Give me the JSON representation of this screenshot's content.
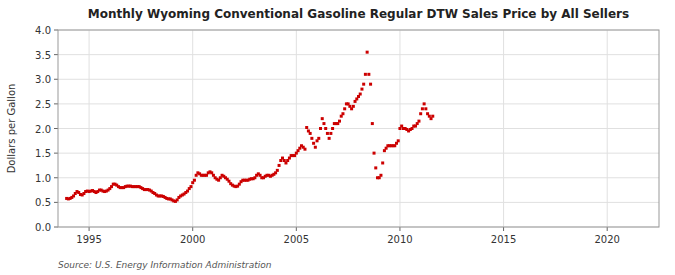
{
  "chart_data": {
    "type": "scatter",
    "title": "Monthly Wyoming Conventional Gasoline Regular DTW Sales Price by All Sellers",
    "y_label": "Dollars per Gallon",
    "source": "Source: U.S. Energy Information Administration",
    "color": "#cc0000",
    "marker": "square",
    "grid": true,
    "xlim": [
      1993.5,
      2022.5
    ],
    "ylim": [
      0.0,
      4.0
    ],
    "xticks": [
      1995,
      2000,
      2005,
      2010,
      2015,
      2020
    ],
    "yticks": [
      {
        "value": 0.0,
        "label": "0.0"
      },
      0.5,
      {
        "value": 1.0,
        "label": "1.0"
      },
      1.5,
      {
        "value": 2.0,
        "label": "2.0"
      },
      2.5,
      {
        "value": 3.0,
        "label": "3.0"
      },
      3.5,
      {
        "value": 4.0,
        "label": "4.0"
      }
    ],
    "x": [
      1993.917,
      1994.0,
      1994.083,
      1994.167,
      1994.25,
      1994.333,
      1994.417,
      1994.5,
      1994.583,
      1994.667,
      1994.75,
      1994.833,
      1994.917,
      1995.0,
      1995.083,
      1995.167,
      1995.25,
      1995.333,
      1995.417,
      1995.5,
      1995.583,
      1995.667,
      1995.75,
      1995.833,
      1995.917,
      1996.0,
      1996.083,
      1996.167,
      1996.25,
      1996.333,
      1996.417,
      1996.5,
      1996.583,
      1996.667,
      1996.75,
      1996.833,
      1996.917,
      1997.0,
      1997.083,
      1997.167,
      1997.25,
      1997.333,
      1997.417,
      1997.5,
      1997.583,
      1997.667,
      1997.75,
      1997.833,
      1997.917,
      1998.0,
      1998.083,
      1998.167,
      1998.25,
      1998.333,
      1998.417,
      1998.5,
      1998.583,
      1998.667,
      1998.75,
      1998.833,
      1998.917,
      1999.0,
      1999.083,
      1999.167,
      1999.25,
      1999.333,
      1999.417,
      1999.5,
      1999.583,
      1999.667,
      1999.75,
      1999.833,
      1999.917,
      2000.0,
      2000.083,
      2000.167,
      2000.25,
      2000.333,
      2000.417,
      2000.5,
      2000.583,
      2000.667,
      2000.75,
      2000.833,
      2000.917,
      2001.0,
      2001.083,
      2001.167,
      2001.25,
      2001.333,
      2001.417,
      2001.5,
      2001.583,
      2001.667,
      2001.75,
      2001.833,
      2001.917,
      2002.0,
      2002.083,
      2002.167,
      2002.25,
      2002.333,
      2002.417,
      2002.5,
      2002.583,
      2002.667,
      2002.75,
      2002.833,
      2002.917,
      2003.0,
      2003.083,
      2003.167,
      2003.25,
      2003.333,
      2003.417,
      2003.5,
      2003.583,
      2003.667,
      2003.75,
      2003.833,
      2003.917,
      2004.0,
      2004.083,
      2004.167,
      2004.25,
      2004.333,
      2004.417,
      2004.5,
      2004.583,
      2004.667,
      2004.75,
      2004.833,
      2004.917,
      2005.0,
      2005.083,
      2005.167,
      2005.25,
      2005.333,
      2005.417,
      2005.5,
      2005.583,
      2005.667,
      2005.75,
      2005.833,
      2005.917,
      2006.0,
      2006.083,
      2006.167,
      2006.25,
      2006.333,
      2006.417,
      2006.5,
      2006.583,
      2006.667,
      2006.75,
      2006.833,
      2006.917,
      2007.0,
      2007.083,
      2007.167,
      2007.25,
      2007.333,
      2007.417,
      2007.5,
      2007.583,
      2007.667,
      2007.75,
      2007.833,
      2007.917,
      2008.0,
      2008.083,
      2008.167,
      2008.25,
      2008.333,
      2008.417,
      2008.5,
      2008.583,
      2008.667,
      2008.75,
      2008.833,
      2008.917,
      2009.0,
      2009.083,
      2009.167,
      2009.25,
      2009.333,
      2009.417,
      2009.5,
      2009.583,
      2009.667,
      2009.75,
      2009.833,
      2009.917,
      2010.0,
      2010.083,
      2010.167,
      2010.25,
      2010.333,
      2010.417,
      2010.5,
      2010.583,
      2010.667,
      2010.75,
      2010.833,
      2010.917,
      2011.0,
      2011.083,
      2011.167,
      2011.25,
      2011.333,
      2011.417,
      2011.5,
      2011.583
    ],
    "values": [
      0.58,
      0.57,
      0.58,
      0.6,
      0.63,
      0.68,
      0.72,
      0.7,
      0.66,
      0.65,
      0.68,
      0.72,
      0.73,
      0.72,
      0.73,
      0.74,
      0.72,
      0.7,
      0.72,
      0.75,
      0.75,
      0.73,
      0.72,
      0.73,
      0.75,
      0.78,
      0.82,
      0.87,
      0.87,
      0.85,
      0.82,
      0.8,
      0.8,
      0.8,
      0.82,
      0.83,
      0.83,
      0.83,
      0.82,
      0.82,
      0.82,
      0.82,
      0.82,
      0.8,
      0.78,
      0.76,
      0.76,
      0.76,
      0.75,
      0.73,
      0.7,
      0.68,
      0.65,
      0.63,
      0.63,
      0.63,
      0.62,
      0.6,
      0.58,
      0.57,
      0.57,
      0.55,
      0.53,
      0.52,
      0.55,
      0.6,
      0.63,
      0.65,
      0.67,
      0.7,
      0.73,
      0.78,
      0.82,
      0.9,
      0.95,
      1.05,
      1.1,
      1.08,
      1.05,
      1.05,
      1.05,
      1.05,
      1.1,
      1.12,
      1.1,
      1.05,
      1.0,
      0.97,
      0.95,
      1.0,
      1.05,
      1.03,
      1.0,
      0.97,
      0.93,
      0.88,
      0.85,
      0.83,
      0.82,
      0.83,
      0.87,
      0.92,
      0.95,
      0.95,
      0.95,
      0.95,
      0.97,
      0.98,
      0.98,
      1.0,
      1.05,
      1.08,
      1.05,
      1.0,
      1.0,
      1.03,
      1.05,
      1.05,
      1.03,
      1.05,
      1.07,
      1.1,
      1.15,
      1.25,
      1.35,
      1.4,
      1.35,
      1.3,
      1.35,
      1.4,
      1.45,
      1.45,
      1.45,
      1.5,
      1.55,
      1.6,
      1.65,
      1.62,
      1.58,
      2.02,
      1.95,
      1.9,
      1.8,
      1.7,
      1.62,
      1.75,
      1.8,
      2.0,
      2.2,
      2.1,
      2.0,
      1.9,
      1.8,
      1.9,
      2.0,
      2.1,
      2.1,
      2.1,
      2.15,
      2.25,
      2.3,
      2.4,
      2.5,
      2.5,
      2.45,
      2.4,
      2.45,
      2.55,
      2.6,
      2.65,
      2.7,
      2.8,
      2.9,
      3.1,
      3.55,
      3.1,
      2.9,
      2.1,
      1.5,
      1.2,
      1.0,
      1.0,
      1.05,
      1.3,
      1.55,
      1.6,
      1.65,
      1.65,
      1.65,
      1.65,
      1.65,
      1.7,
      1.75,
      2.0,
      2.05,
      2.0,
      2.0,
      1.98,
      1.95,
      1.98,
      2.0,
      2.05,
      2.05,
      2.1,
      2.15,
      2.3,
      2.4,
      2.5,
      2.4,
      2.3,
      2.25,
      2.2,
      2.25
    ]
  }
}
